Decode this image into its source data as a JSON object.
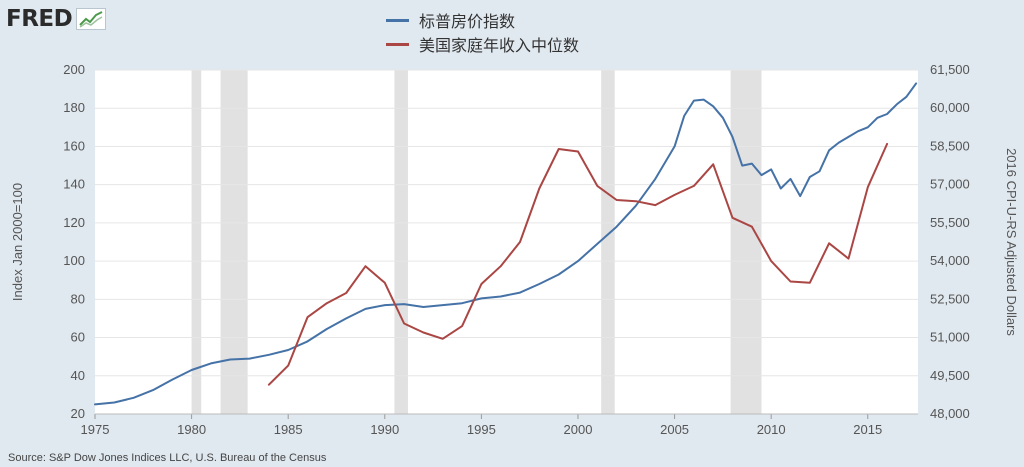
{
  "brand": {
    "logo_text": "FRED"
  },
  "source": "Source: S&P Dow Jones Indices LLC, U.S. Bureau of the Census",
  "chart_data": {
    "type": "line",
    "title": "",
    "xlabel": "",
    "ylabel": "Index Jan 2000=100",
    "y2label": "2016 CPI-U-RS Adjusted Dollars",
    "legend_placement": "top-center",
    "xlim": [
      1975,
      2017.6
    ],
    "ylim": [
      20,
      200
    ],
    "y2lim": [
      48000,
      61500
    ],
    "x_ticks": [
      "1975",
      "1980",
      "1985",
      "1990",
      "1995",
      "2000",
      "2005",
      "2010",
      "2015"
    ],
    "y_ticks": [
      "20",
      "40",
      "60",
      "80",
      "100",
      "120",
      "140",
      "160",
      "180",
      "200"
    ],
    "y2_ticks": [
      "48,000",
      "49,500",
      "51,000",
      "52,500",
      "54,000",
      "55,500",
      "57,000",
      "58,500",
      "60,000",
      "61,500"
    ],
    "recessions": [
      [
        1980.0,
        1980.5
      ],
      [
        1981.5,
        1982.9
      ],
      [
        1990.5,
        1991.2
      ],
      [
        2001.2,
        2001.9
      ],
      [
        2007.9,
        2009.5
      ]
    ],
    "series": [
      {
        "name": "标普房价指数",
        "color": "#4572a7",
        "axis": "left",
        "x": [
          1975,
          1976,
          1977,
          1978,
          1979,
          1980,
          1981,
          1982,
          1983,
          1984,
          1985,
          1986,
          1987,
          1988,
          1989,
          1990,
          1991,
          1992,
          1993,
          1994,
          1995,
          1996,
          1997,
          1998,
          1999,
          2000,
          2001,
          2002,
          2003,
          2004,
          2005,
          2005.5,
          2006,
          2006.5,
          2007,
          2007.5,
          2008,
          2008.5,
          2009,
          2009.5,
          2010,
          2010.5,
          2011,
          2011.5,
          2012,
          2012.5,
          2013,
          2013.5,
          2014,
          2014.5,
          2015,
          2015.5,
          2016,
          2016.5,
          2017,
          2017.5
        ],
        "y": [
          25,
          26,
          28.5,
          32.5,
          38,
          43,
          46.5,
          48.5,
          49,
          51,
          53.5,
          58,
          64.5,
          70,
          75,
          77,
          77.5,
          76,
          77,
          78,
          80.5,
          81.5,
          83.5,
          88,
          93,
          100,
          109,
          118,
          129,
          143,
          160,
          176,
          184,
          184.5,
          181,
          175,
          165,
          150,
          151,
          145,
          148,
          138,
          143,
          134,
          144,
          147,
          158,
          162,
          165,
          168,
          170,
          175,
          177,
          182,
          186,
          193
        ]
      },
      {
        "name": "美国家庭年收入中位数",
        "color": "#aa4643",
        "axis": "right",
        "x": [
          1984,
          1985,
          1986,
          1987,
          1988,
          1989,
          1990,
          1991,
          1992,
          1993,
          1994,
          1995,
          1996,
          1997,
          1998,
          1999,
          2000,
          2001,
          2002,
          2003,
          2004,
          2005,
          2006,
          2007,
          2008,
          2009,
          2010,
          2011,
          2012,
          2013,
          2014,
          2015,
          2016
        ],
        "y": [
          49150,
          49900,
          51800,
          52350,
          52750,
          53800,
          53150,
          51550,
          51200,
          50950,
          51450,
          53100,
          53800,
          54750,
          56850,
          58400,
          58300,
          56950,
          56400,
          56350,
          56200,
          56600,
          56950,
          57800,
          55700,
          55350,
          54000,
          53200,
          53150,
          54700,
          54100,
          56900,
          58600
        ]
      }
    ]
  }
}
